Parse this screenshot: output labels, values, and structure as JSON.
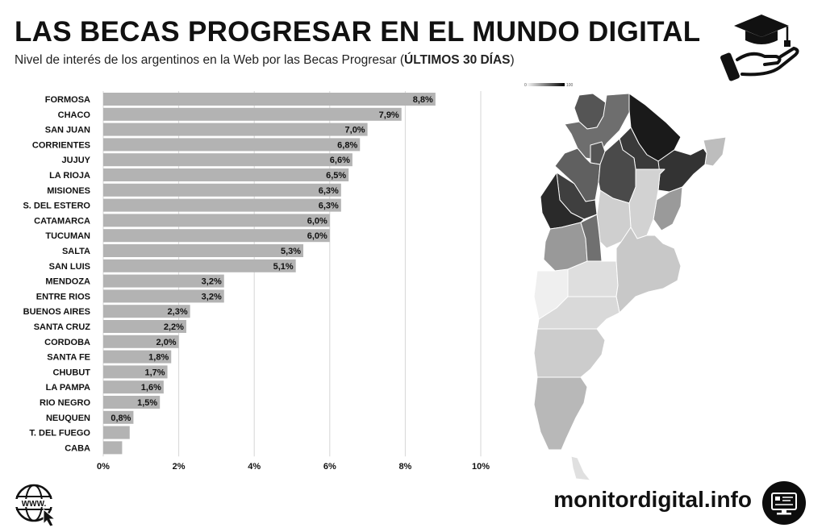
{
  "header": {
    "title": "LAS BECAS PROGRESAR EN EL MUNDO DIGITAL",
    "subtitle_prefix": "Nivel de interés de los argentinos en la Web por las Becas Progresar (",
    "subtitle_bold": "ÚLTIMOS 30 DÍAS",
    "subtitle_suffix": ")"
  },
  "map": {
    "legend_min": "0",
    "legend_max": "100"
  },
  "footer": {
    "site": "monitordigital.info"
  },
  "icons": {
    "top": "graduation-cap-hand-icon",
    "bottom_left": "www-globe-icon",
    "bottom_right": "monitor-icon"
  },
  "chart_data": {
    "type": "bar",
    "orientation": "horizontal",
    "categories": [
      "FORMOSA",
      "CHACO",
      "SAN JUAN",
      "CORRIENTES",
      "JUJUY",
      "LA RIOJA",
      "MISIONES",
      "S. DEL ESTERO",
      "CATAMARCA",
      "TUCUMAN",
      "SALTA",
      "SAN LUIS",
      "MENDOZA",
      "ENTRE RIOS",
      "BUENOS AIRES",
      "SANTA CRUZ",
      "CORDOBA",
      "SANTA FE",
      "CHUBUT",
      "LA PAMPA",
      "RIO NEGRO",
      "NEUQUEN",
      "T. DEL FUEGO",
      "CABA"
    ],
    "values": [
      8.8,
      7.9,
      7.0,
      6.8,
      6.6,
      6.5,
      6.3,
      6.3,
      6.0,
      6.0,
      5.3,
      5.1,
      3.2,
      3.2,
      2.3,
      2.2,
      2.0,
      1.8,
      1.7,
      1.6,
      1.5,
      0.8,
      0.7,
      0.5
    ],
    "labels": [
      "8,8%",
      "7,9%",
      "7,0%",
      "6,8%",
      "6,6%",
      "6,5%",
      "6,3%",
      "6,3%",
      "6,0%",
      "6,0%",
      "5,3%",
      "5,1%",
      "3,2%",
      "3,2%",
      "2,3%",
      "2,2%",
      "2,0%",
      "1,8%",
      "1,7%",
      "1,6%",
      "1,5%",
      "0,8%",
      "",
      ""
    ],
    "xticks": [
      "0%",
      "2%",
      "4%",
      "6%",
      "8%",
      "10%"
    ],
    "xlim": [
      0,
      10
    ],
    "grid": true,
    "bar_color": "#b3b3b3"
  }
}
